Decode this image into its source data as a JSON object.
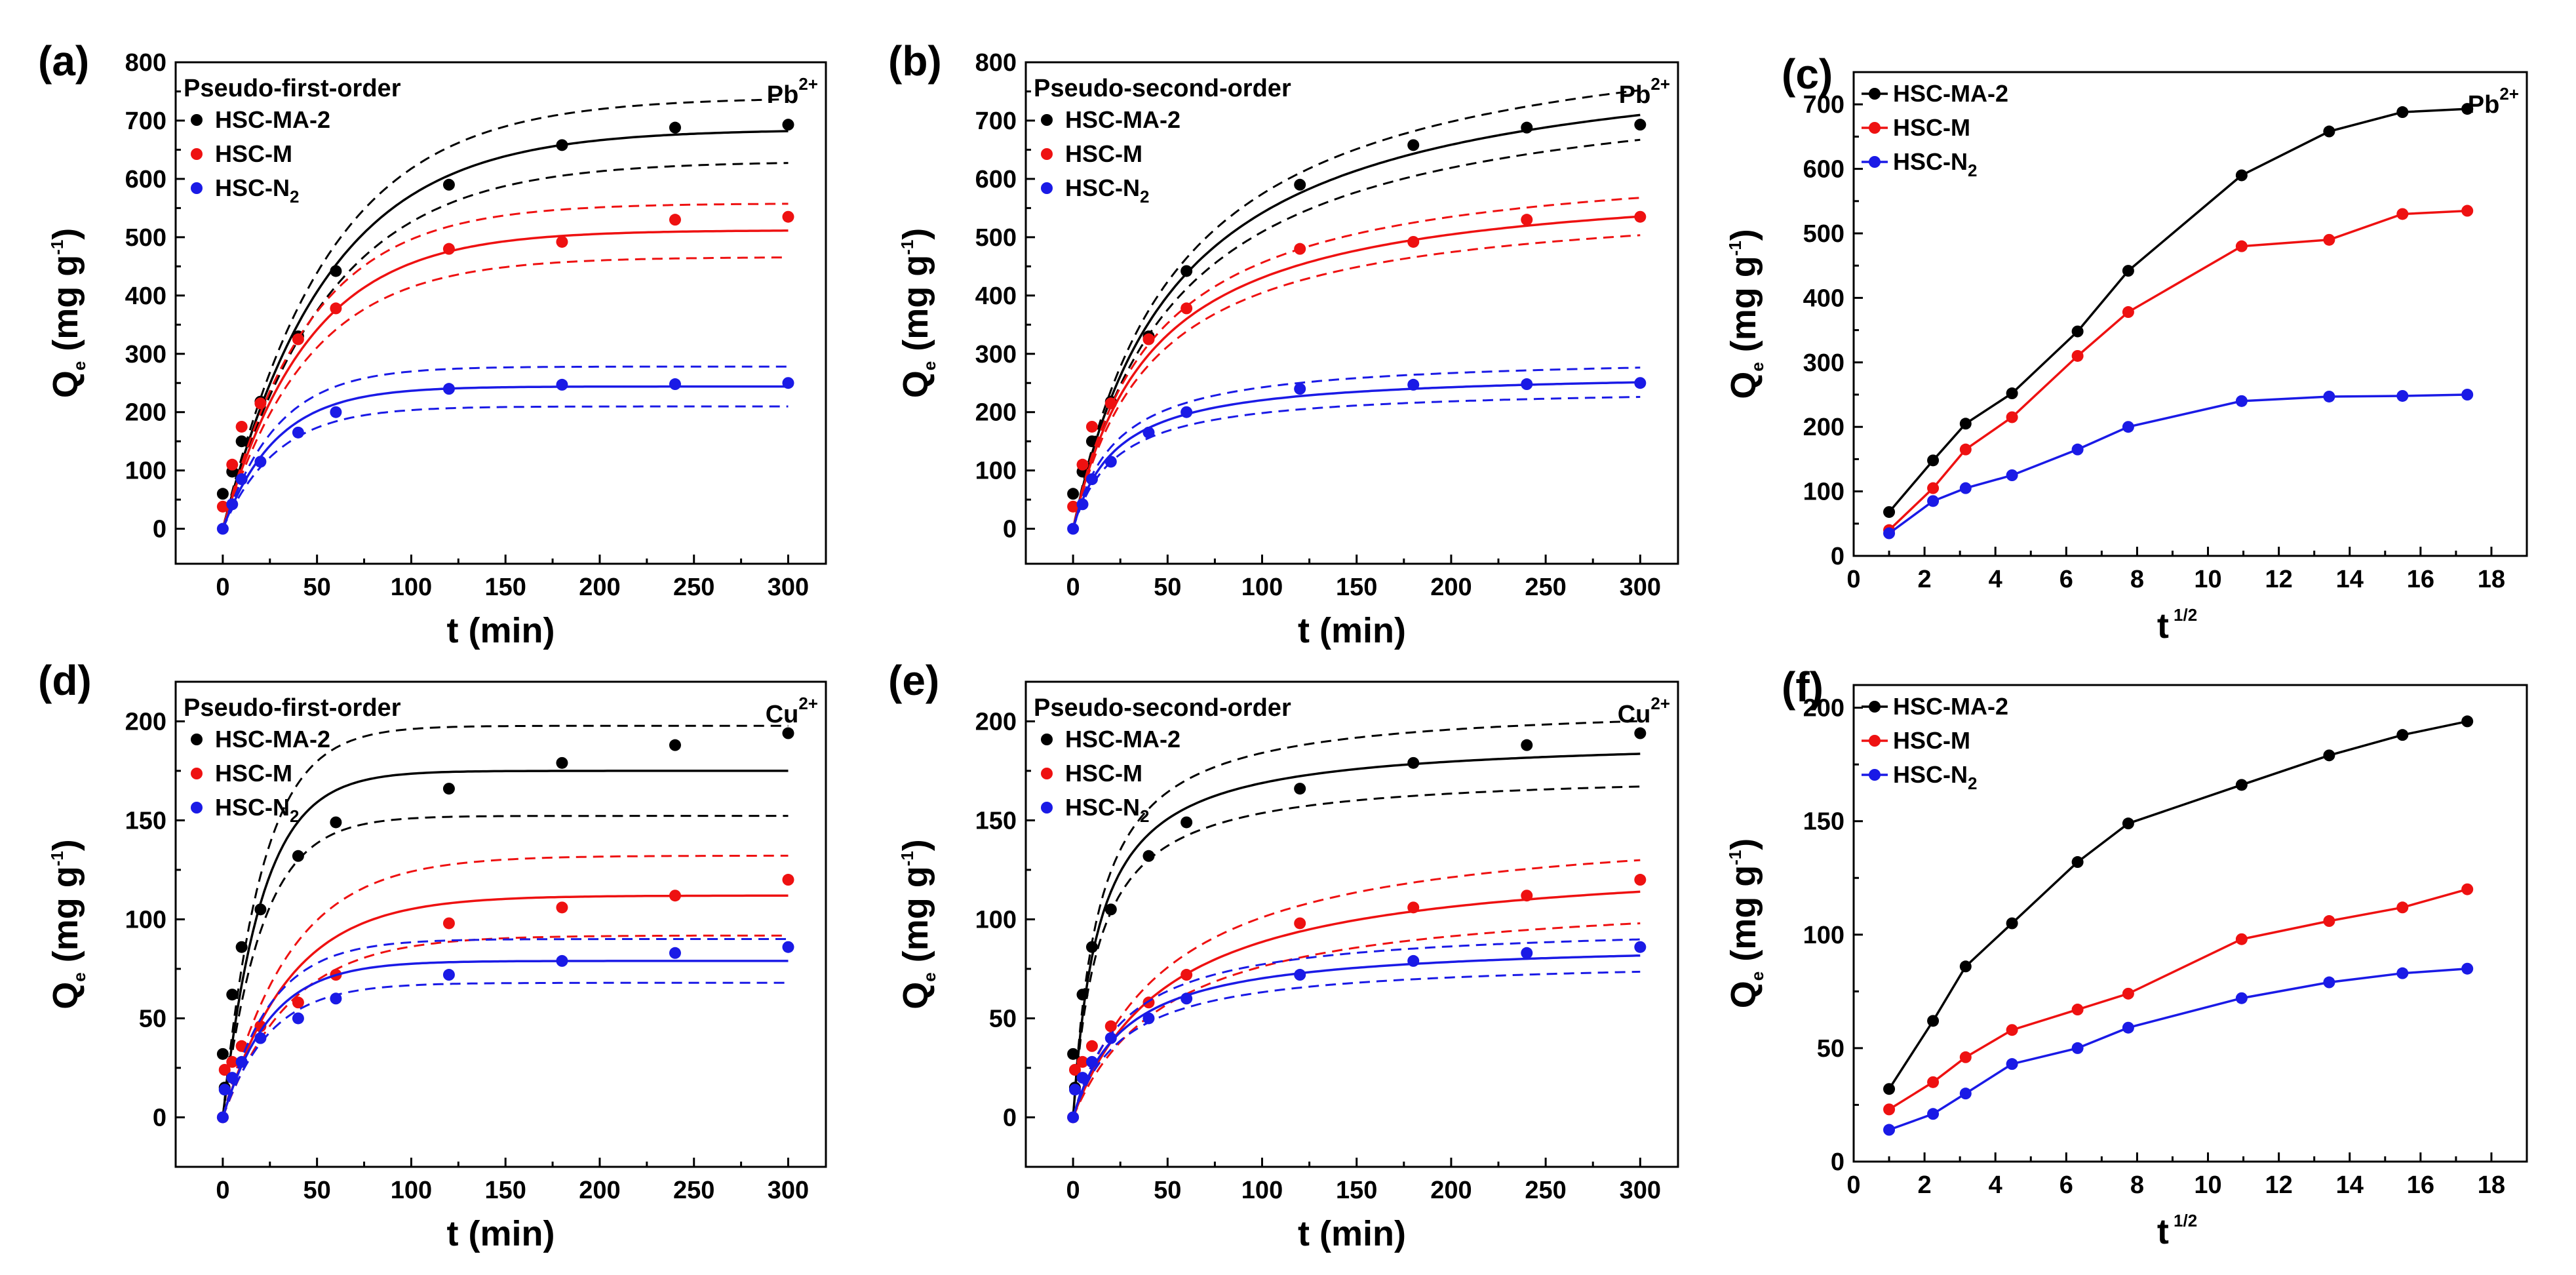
{
  "figure_labels": {
    "t_min": "t (min)",
    "t_sqrt": "t",
    "t_sqrt_exp": "1/2",
    "qe_pre": "Q",
    "qe_sub": "e",
    "qe_unit": " (mg g",
    "qe_exp": "-1",
    "qe_close": ")"
  },
  "colors": {
    "HSC-MA-2": "#000000",
    "HSC-M": "#ee1111",
    "HSC-N2": "#1a1ae6"
  },
  "chart_data": [
    {
      "id": "a",
      "label": "(a)",
      "type": "scatter",
      "fit": "curve",
      "title": "Pseudo-first-order",
      "ion": "Pb",
      "ion_charge": "2+",
      "xlabel": "t (min)",
      "ylabel": "Qe (mg g-1)",
      "xlim": [
        -25,
        320
      ],
      "ylim": [
        -60,
        800
      ],
      "xticks": [
        0,
        50,
        100,
        150,
        200,
        250,
        300
      ],
      "yticks": [
        0,
        100,
        200,
        300,
        400,
        500,
        600,
        700,
        800
      ],
      "x": [
        0,
        5,
        10,
        20,
        40,
        60,
        120,
        180,
        240,
        300
      ],
      "series": [
        {
          "name": "HSC-MA-2",
          "legend": "HSC-MA-2",
          "legend_sub": "",
          "values": [
            60,
            98,
            150,
            218,
            330,
            442,
            590,
            658,
            688,
            693
          ],
          "fit_model": "pfo",
          "qe": 685,
          "k": 0.018,
          "band": [
            0.92,
            1.08
          ]
        },
        {
          "name": "HSC-M",
          "legend": "HSC-M",
          "legend_sub": "",
          "values": [
            38,
            110,
            175,
            215,
            325,
            378,
            480,
            492,
            530,
            535
          ],
          "fit_model": "pfo",
          "qe": 512,
          "k": 0.022,
          "band": [
            0.91,
            1.09
          ]
        },
        {
          "name": "HSC-N2",
          "legend": "HSC-N",
          "legend_sub": "2",
          "values": [
            0,
            42,
            85,
            115,
            165,
            200,
            240,
            247,
            248,
            250
          ],
          "fit_model": "pfo",
          "qe": 244,
          "k": 0.035,
          "band": [
            0.86,
            1.14
          ]
        }
      ]
    },
    {
      "id": "b",
      "label": "(b)",
      "type": "scatter",
      "fit": "curve",
      "title": "Pseudo-second-order",
      "ion": "Pb",
      "ion_charge": "2+",
      "xlabel": "t (min)",
      "ylabel": "Qe (mg g-1)",
      "xlim": [
        -25,
        320
      ],
      "ylim": [
        -60,
        800
      ],
      "xticks": [
        0,
        50,
        100,
        150,
        200,
        250,
        300
      ],
      "yticks": [
        0,
        100,
        200,
        300,
        400,
        500,
        600,
        700,
        800
      ],
      "x": [
        0,
        5,
        10,
        20,
        40,
        60,
        120,
        180,
        240,
        300
      ],
      "series": [
        {
          "name": "HSC-MA-2",
          "legend": "HSC-MA-2",
          "legend_sub": "",
          "values": [
            60,
            98,
            150,
            218,
            330,
            442,
            590,
            658,
            688,
            693
          ],
          "fit_model": "pso",
          "qe": 840,
          "k": 2.16e-05,
          "band": [
            0.94,
            1.06
          ]
        },
        {
          "name": "HSC-M",
          "legend": "HSC-M",
          "legend_sub": "",
          "values": [
            38,
            110,
            175,
            215,
            325,
            378,
            480,
            492,
            530,
            535
          ],
          "fit_model": "pso",
          "qe": 610,
          "k": 3.93e-05,
          "band": [
            0.94,
            1.06
          ]
        },
        {
          "name": "HSC-N2",
          "legend": "HSC-N",
          "legend_sub": "2",
          "values": [
            0,
            42,
            85,
            115,
            165,
            200,
            240,
            247,
            248,
            250
          ],
          "fit_model": "pso",
          "qe": 270,
          "k": 0.000165,
          "band": [
            0.9,
            1.1
          ]
        }
      ]
    },
    {
      "id": "c",
      "label": "(c)",
      "type": "line",
      "fit": "none",
      "title": "",
      "ion": "Pb",
      "ion_charge": "2+",
      "xlabel": "t 1/2",
      "ylabel": "Qe (mg g-1)",
      "xlim": [
        0,
        19
      ],
      "ylim": [
        0,
        750
      ],
      "xticks": [
        0,
        2,
        4,
        6,
        8,
        10,
        12,
        14,
        16,
        18
      ],
      "yticks": [
        0,
        100,
        200,
        300,
        400,
        500,
        600,
        700
      ],
      "x": [
        1,
        2.24,
        3.16,
        4.47,
        6.32,
        7.75,
        10.95,
        13.42,
        15.49,
        17.32
      ],
      "series": [
        {
          "name": "HSC-MA-2",
          "legend": "HSC-MA-2",
          "legend_sub": "",
          "values": [
            68,
            148,
            205,
            252,
            348,
            442,
            590,
            658,
            688,
            693
          ]
        },
        {
          "name": "HSC-M",
          "legend": "HSC-M",
          "legend_sub": "",
          "values": [
            40,
            105,
            165,
            215,
            310,
            378,
            480,
            490,
            530,
            535
          ]
        },
        {
          "name": "HSC-N2",
          "legend": "HSC-N",
          "legend_sub": "2",
          "values": [
            35,
            85,
            105,
            125,
            165,
            200,
            240,
            247,
            248,
            250
          ]
        }
      ]
    },
    {
      "id": "d",
      "label": "(d)",
      "type": "scatter",
      "fit": "curve",
      "title": "Pseudo-first-order",
      "ion": "Cu",
      "ion_charge": "2+",
      "xlabel": "t (min)",
      "ylabel": "Qe (mg g-1)",
      "xlim": [
        -25,
        320
      ],
      "ylim": [
        -25,
        220
      ],
      "xticks": [
        0,
        50,
        100,
        150,
        200,
        250,
        300
      ],
      "yticks": [
        0,
        50,
        100,
        150,
        200
      ],
      "x": [
        0,
        1,
        5,
        10,
        20,
        40,
        60,
        120,
        180,
        240,
        300
      ],
      "series": [
        {
          "name": "HSC-MA-2",
          "legend": "HSC-MA-2",
          "legend_sub": "",
          "values": [
            32,
            15,
            62,
            86,
            105,
            132,
            149,
            166,
            179,
            188,
            194
          ],
          "fit_model": "pfo",
          "qe": 175,
          "k": 0.048,
          "band": [
            0.87,
            1.13
          ]
        },
        {
          "name": "HSC-M",
          "legend": "HSC-M",
          "legend_sub": "",
          "values": [
            0,
            24,
            28,
            36,
            46,
            58,
            72,
            98,
            106,
            112,
            120
          ],
          "fit_model": "pfo",
          "qe": 112,
          "k": 0.028,
          "band": [
            0.82,
            1.18
          ]
        },
        {
          "name": "HSC-N2",
          "legend": "HSC-N",
          "legend_sub": "2",
          "values": [
            0,
            14,
            20,
            28,
            40,
            50,
            60,
            72,
            79,
            83,
            86
          ],
          "fit_model": "pfo",
          "qe": 79,
          "k": 0.04,
          "band": [
            0.86,
            1.14
          ]
        }
      ]
    },
    {
      "id": "e",
      "label": "(e)",
      "type": "scatter",
      "fit": "curve",
      "title": "Pseudo-second-order",
      "ion": "Cu",
      "ion_charge": "2+",
      "xlabel": "t (min)",
      "ylabel": "Qe (mg g-1)",
      "xlim": [
        -25,
        320
      ],
      "ylim": [
        -25,
        220
      ],
      "xticks": [
        0,
        50,
        100,
        150,
        200,
        250,
        300
      ],
      "yticks": [
        0,
        50,
        100,
        150,
        200
      ],
      "x": [
        0,
        1,
        5,
        10,
        20,
        40,
        60,
        120,
        180,
        240,
        300
      ],
      "series": [
        {
          "name": "HSC-MA-2",
          "legend": "HSC-MA-2",
          "legend_sub": "",
          "values": [
            32,
            15,
            62,
            86,
            105,
            132,
            149,
            166,
            179,
            188,
            194
          ],
          "fit_model": "pso",
          "qe": 192,
          "k": 0.00038,
          "band": [
            0.91,
            1.09
          ]
        },
        {
          "name": "HSC-M",
          "legend": "HSC-M",
          "legend_sub": "",
          "values": [
            0,
            24,
            28,
            36,
            46,
            58,
            72,
            98,
            106,
            112,
            120
          ],
          "fit_model": "pso",
          "qe": 133,
          "k": 0.00015,
          "band": [
            0.86,
            1.14
          ]
        },
        {
          "name": "HSC-N2",
          "legend": "HSC-N",
          "legend_sub": "2",
          "values": [
            0,
            14,
            20,
            28,
            40,
            50,
            60,
            72,
            79,
            83,
            86
          ],
          "fit_model": "pso",
          "qe": 89,
          "k": 0.00042,
          "band": [
            0.9,
            1.1
          ]
        }
      ]
    },
    {
      "id": "f",
      "label": "(f)",
      "type": "line",
      "fit": "none",
      "title": "",
      "ion": "",
      "ion_charge": "",
      "xlabel": "t 1/2",
      "ylabel": "Qe (mg g-1)",
      "xlim": [
        0,
        19
      ],
      "ylim": [
        0,
        210
      ],
      "xticks": [
        0,
        2,
        4,
        6,
        8,
        10,
        12,
        14,
        16,
        18
      ],
      "yticks": [
        0,
        50,
        100,
        150,
        200
      ],
      "x": [
        1,
        2.24,
        3.16,
        4.47,
        6.32,
        7.75,
        10.95,
        13.42,
        15.49,
        17.32
      ],
      "series": [
        {
          "name": "HSC-MA-2",
          "legend": "HSC-MA-2",
          "legend_sub": "",
          "values": [
            32,
            62,
            86,
            105,
            132,
            149,
            166,
            179,
            188,
            194
          ]
        },
        {
          "name": "HSC-M",
          "legend": "HSC-M",
          "legend_sub": "",
          "values": [
            23,
            35,
            46,
            58,
            67,
            74,
            98,
            106,
            112,
            120
          ]
        },
        {
          "name": "HSC-N2",
          "legend": "HSC-N",
          "legend_sub": "2",
          "values": [
            14,
            21,
            30,
            43,
            50,
            59,
            72,
            79,
            83,
            85
          ]
        }
      ]
    }
  ]
}
